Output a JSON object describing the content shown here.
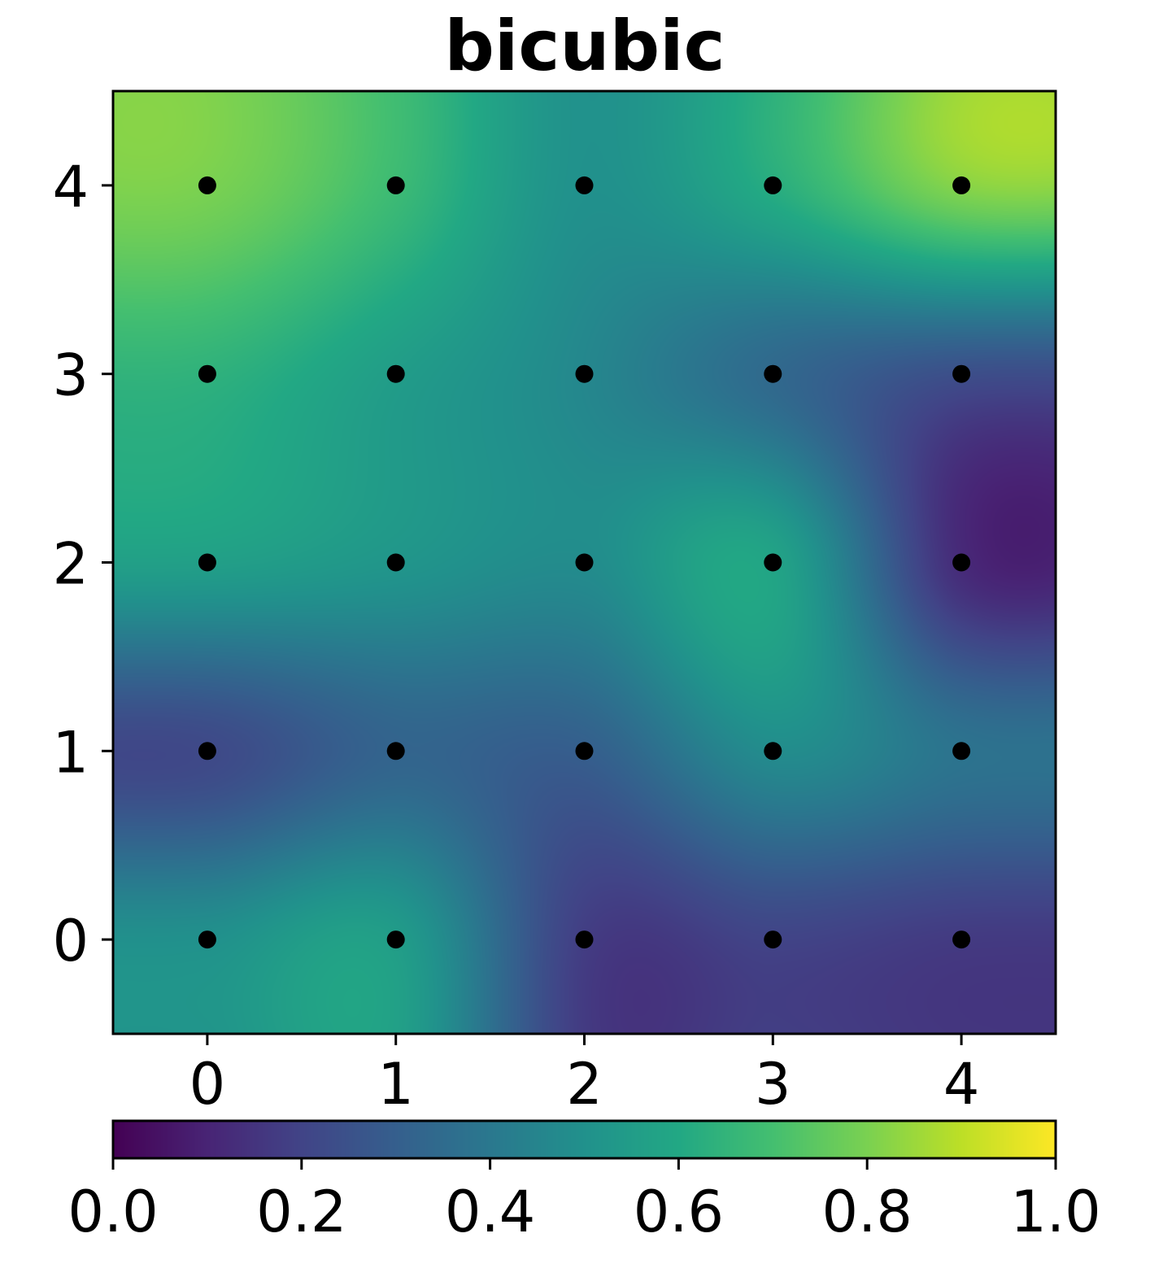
{
  "chart_data": {
    "type": "heatmap",
    "title": "bicubic",
    "interpolation": "bicubic",
    "colormap": "viridis",
    "x": [
      0,
      1,
      2,
      3,
      4
    ],
    "y": [
      0,
      1,
      2,
      3,
      4
    ],
    "xlim": [
      -0.5,
      4.5
    ],
    "ylim": [
      -0.5,
      4.5
    ],
    "z": [
      [
        0.5,
        0.55,
        0.18,
        0.2,
        0.17
      ],
      [
        0.22,
        0.32,
        0.3,
        0.48,
        0.38
      ],
      [
        0.56,
        0.52,
        0.48,
        0.58,
        0.12
      ],
      [
        0.64,
        0.55,
        0.46,
        0.34,
        0.24
      ],
      [
        0.8,
        0.68,
        0.5,
        0.62,
        0.82
      ]
    ],
    "x_ticks": [
      "0",
      "1",
      "2",
      "3",
      "4"
    ],
    "y_ticks": [
      "0",
      "1",
      "2",
      "3",
      "4"
    ],
    "grid_points_marker": "black dot",
    "grid": false,
    "colorbar": {
      "orientation": "horizontal",
      "placement": "bottom",
      "range": [
        0.0,
        1.0
      ],
      "ticks": [
        "0.0",
        "0.2",
        "0.4",
        "0.6",
        "0.8",
        "1.0"
      ]
    },
    "colors": {
      "marker": "#000000",
      "viridis_0": "#440154",
      "viridis_50": "#21918c",
      "viridis_100": "#fde725"
    }
  }
}
